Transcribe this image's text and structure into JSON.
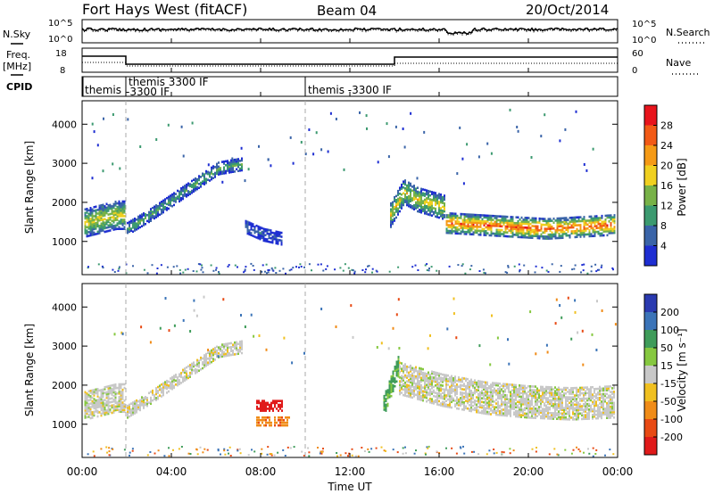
{
  "header": {
    "radar": "Fort Hays West (fitACF)",
    "beam": "Beam 04",
    "date": "20/Oct/2014"
  },
  "left_labels": {
    "nsky": "N.Sky",
    "freq": "Freq.",
    "freq_unit": "[MHz]",
    "cpid": "CPID"
  },
  "right_labels": {
    "nsearch": "N.Search",
    "nave": "Nave"
  },
  "noise_panel": {
    "left_ticks": [
      "10^5",
      "10^0"
    ],
    "right_ticks": [
      "10^5",
      "10^0"
    ]
  },
  "freq_panel": {
    "left_ticks": [
      "18",
      "8"
    ],
    "right_ticks": [
      "60",
      "0"
    ]
  },
  "cpid_panel": {
    "segments": [
      {
        "label1": "themis",
        "label2": ""
      },
      {
        "label1": "themis 3300 IF",
        "label2": "-3300 IF"
      },
      {
        "label1": "themis -3300 IF",
        "label2": ""
      }
    ]
  },
  "power_colorbar": {
    "title": "Power [dB]",
    "ticks": [
      "28",
      "24",
      "20",
      "16",
      "12",
      "8",
      "4"
    ],
    "colors": [
      "#e8141c",
      "#f25a16",
      "#f59a16",
      "#f0d020",
      "#78b248",
      "#3c9a70",
      "#3a64a8",
      "#1e2ed2"
    ]
  },
  "velocity_colorbar": {
    "title": "Velocity [m s⁻¹]",
    "ticks": [
      "200",
      "100",
      "50",
      "15",
      "-15",
      "-50",
      "-100",
      "-200"
    ],
    "colors": [
      "#2a3ab0",
      "#3b74b8",
      "#3f9c5a",
      "#86c840",
      "#c8c8c8",
      "#f0c020",
      "#f08c18",
      "#e84a14",
      "#e01a1a"
    ]
  },
  "x_axis": {
    "label": "Time UT",
    "ticks": [
      "00:00",
      "04:00",
      "08:00",
      "12:00",
      "16:00",
      "20:00",
      "00:00"
    ]
  },
  "chart_data": [
    {
      "type": "heatmap",
      "panel": "power",
      "ylabel": "Slant Range [km]",
      "xlabel": "",
      "xlim_hours": [
        0,
        24
      ],
      "ylim_km": [
        150,
        4600
      ],
      "yticks": [
        "4000",
        "3000",
        "2000",
        "1000"
      ],
      "colorbar_label": "Power [dB]",
      "colorbar_range": [
        0,
        30
      ],
      "grid": false,
      "dashed_time_markers_hours": [
        2.0,
        10.0
      ],
      "bands": [
        {
          "start_h": 0.1,
          "end_h": 1.9,
          "center_km": [
            1500,
            1550,
            1600,
            1650,
            1700,
            1700
          ],
          "width_km": 700,
          "peak_db": 18
        },
        {
          "start_h": 2.0,
          "end_h": 7.2,
          "center_km": [
            1350,
            1700,
            2100,
            2500,
            2900,
            3000
          ],
          "width_km": 300,
          "peak_db": 12
        },
        {
          "start_h": 7.3,
          "end_h": 9.0,
          "center_km": [
            1400,
            1200,
            1100
          ],
          "width_km": 300,
          "peak_db": 6
        },
        {
          "start_h": 13.8,
          "end_h": 16.3,
          "center_km": [
            1700,
            2300,
            2100,
            2000,
            1900
          ],
          "width_km": 600,
          "peak_db": 18
        },
        {
          "start_h": 16.3,
          "end_h": 23.9,
          "center_km": [
            1500,
            1450,
            1400,
            1350,
            1400,
            1450
          ],
          "width_km": 500,
          "peak_db": 26
        }
      ]
    },
    {
      "type": "heatmap",
      "panel": "velocity",
      "ylabel": "Slant Range [km]",
      "xlabel": "Time UT",
      "xlim_hours": [
        0,
        24
      ],
      "ylim_km": [
        150,
        4600
      ],
      "yticks": [
        "4000",
        "3000",
        "2000",
        "1000"
      ],
      "colorbar_label": "Velocity [m s⁻¹]",
      "colorbar_range": [
        -250,
        250
      ],
      "grid": false,
      "dashed_time_markers_hours": [
        2.0,
        10.0
      ],
      "bands": [
        {
          "start_h": 0.1,
          "end_h": 1.9,
          "center_km": [
            1500,
            1550,
            1600,
            1650,
            1700,
            1700
          ],
          "width_km": 700,
          "velocity": 0
        },
        {
          "start_h": 2.0,
          "end_h": 7.2,
          "center_km": [
            1350,
            1700,
            2100,
            2500,
            2900,
            3000
          ],
          "width_km": 300,
          "velocity": 0
        },
        {
          "start_h": 7.8,
          "end_h": 9.0,
          "center_km": [
            1500,
            1500,
            1500
          ],
          "width_km": 250,
          "velocity": -220
        },
        {
          "start_h": 7.8,
          "end_h": 9.3,
          "center_km": [
            1100,
            1100,
            1100
          ],
          "width_km": 200,
          "velocity": -90
        },
        {
          "start_h": 13.5,
          "end_h": 14.2,
          "center_km": [
            1500,
            2000,
            2500
          ],
          "width_km": 500,
          "velocity": 60
        },
        {
          "start_h": 14.2,
          "end_h": 23.9,
          "center_km": [
            2200,
            1900,
            1700,
            1600,
            1550,
            1600
          ],
          "width_km": 800,
          "velocity": 0
        }
      ]
    }
  ]
}
